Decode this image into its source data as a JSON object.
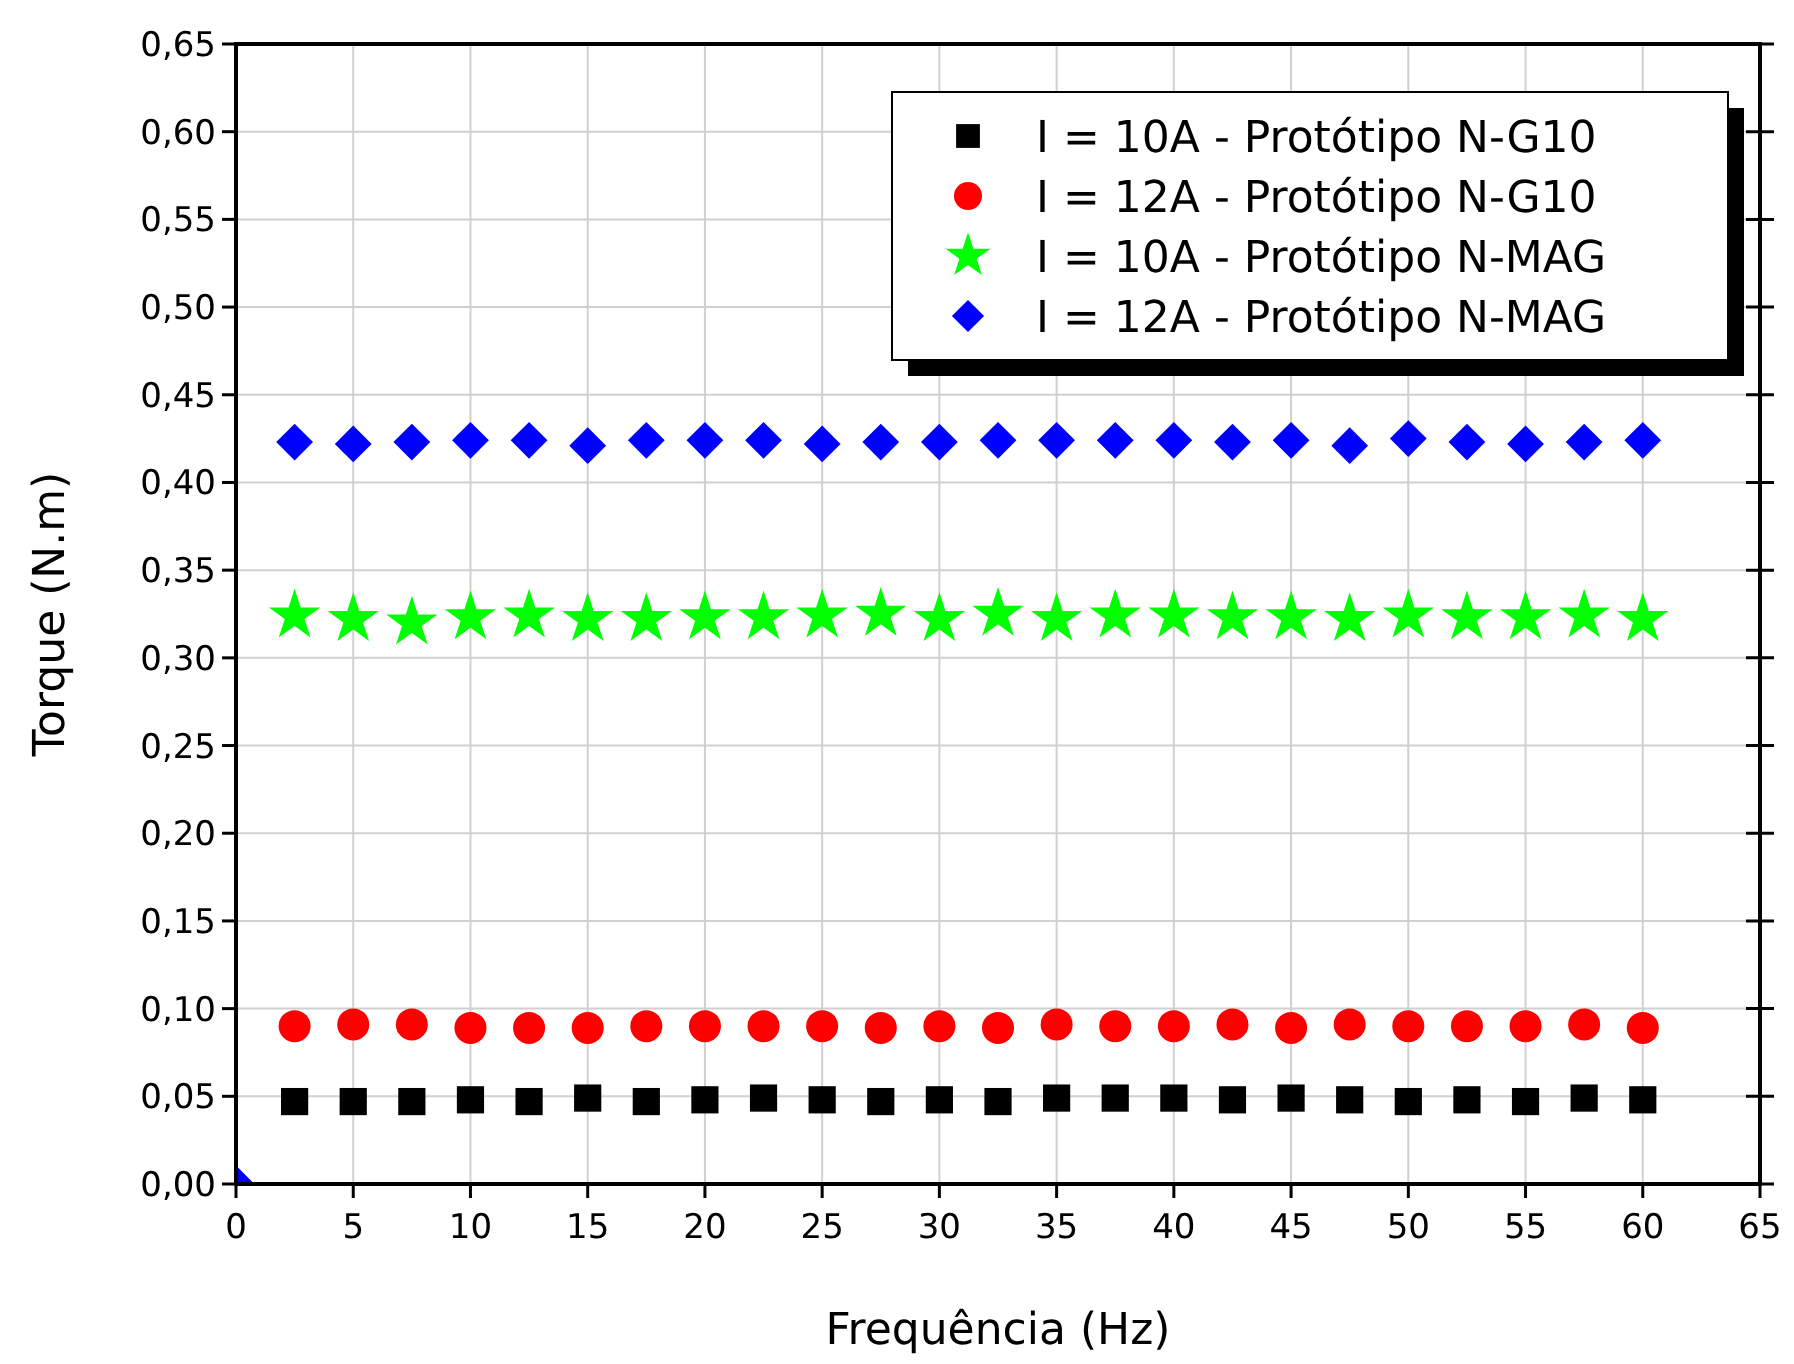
{
  "chart_data": {
    "type": "scatter",
    "xlabel": "Frequência (Hz)",
    "ylabel": "Torque (N.m)",
    "xlim": [
      0,
      65
    ],
    "ylim": [
      0,
      0.65
    ],
    "xticks": [
      0,
      5,
      10,
      15,
      20,
      25,
      30,
      35,
      40,
      45,
      50,
      55,
      60,
      65
    ],
    "yticks": [
      {
        "value": 0,
        "label": "0,00"
      },
      {
        "value": 0.05,
        "label": "0,05"
      },
      {
        "value": 0.1,
        "label": "0,10"
      },
      {
        "value": 0.15,
        "label": "0,15"
      },
      {
        "value": 0.2,
        "label": "0,20"
      },
      {
        "value": 0.25,
        "label": "0,25"
      },
      {
        "value": 0.3,
        "label": "0,30"
      },
      {
        "value": 0.35,
        "label": "0,35"
      },
      {
        "value": 0.4,
        "label": "0,40"
      },
      {
        "value": 0.45,
        "label": "0,45"
      },
      {
        "value": 0.5,
        "label": "0,50"
      },
      {
        "value": 0.55,
        "label": "0,55"
      },
      {
        "value": 0.6,
        "label": "0,60"
      },
      {
        "value": 0.65,
        "label": "0,65"
      }
    ],
    "grid": true,
    "legend": "top right",
    "series": [
      {
        "name": "I = 10A - Protótipo N-G10",
        "color": "#000000",
        "marker": "square",
        "x": [
          2.5,
          5,
          7.5,
          10,
          12.5,
          15,
          17.5,
          20,
          22.5,
          25,
          27.5,
          30,
          32.5,
          35,
          37.5,
          40,
          42.5,
          45,
          47.5,
          50,
          52.5,
          55,
          57.5,
          60
        ],
        "values": [
          0.047,
          0.047,
          0.047,
          0.048,
          0.047,
          0.049,
          0.047,
          0.048,
          0.049,
          0.048,
          0.047,
          0.048,
          0.047,
          0.049,
          0.049,
          0.049,
          0.048,
          0.049,
          0.048,
          0.047,
          0.048,
          0.047,
          0.049,
          0.048
        ]
      },
      {
        "name": "I = 12A - Protótipo N-G10",
        "color": "#ff0000",
        "marker": "circle",
        "x": [
          2.5,
          5,
          7.5,
          10,
          12.5,
          15,
          17.5,
          20,
          22.5,
          25,
          27.5,
          30,
          32.5,
          35,
          37.5,
          40,
          42.5,
          45,
          47.5,
          50,
          52.5,
          55,
          57.5,
          60
        ],
        "values": [
          0.09,
          0.091,
          0.091,
          0.089,
          0.089,
          0.089,
          0.09,
          0.09,
          0.09,
          0.09,
          0.089,
          0.09,
          0.089,
          0.091,
          0.09,
          0.09,
          0.091,
          0.089,
          0.091,
          0.09,
          0.09,
          0.09,
          0.091,
          0.089
        ]
      },
      {
        "name": "I = 10A - Protótipo N-MAG",
        "color": "#00ff00",
        "marker": "star",
        "x": [
          2.5,
          5,
          7.5,
          10,
          12.5,
          15,
          17.5,
          20,
          22.5,
          25,
          27.5,
          30,
          32.5,
          35,
          37.5,
          40,
          42.5,
          45,
          47.5,
          50,
          52.5,
          55,
          57.5,
          60
        ],
        "values": [
          0.324,
          0.322,
          0.32,
          0.323,
          0.324,
          0.322,
          0.322,
          0.323,
          0.323,
          0.324,
          0.325,
          0.322,
          0.325,
          0.322,
          0.324,
          0.324,
          0.323,
          0.323,
          0.322,
          0.324,
          0.323,
          0.323,
          0.324,
          0.322
        ]
      },
      {
        "name": "I = 12A - Protótipo N-MAG",
        "color": "#0000ff",
        "marker": "diamond",
        "x": [
          0,
          2.5,
          5,
          7.5,
          10,
          12.5,
          15,
          17.5,
          20,
          22.5,
          25,
          27.5,
          30,
          32.5,
          35,
          37.5,
          40,
          42.5,
          45,
          47.5,
          50,
          52.5,
          55,
          57.5,
          60
        ],
        "values": [
          0,
          0.423,
          0.422,
          0.423,
          0.424,
          0.424,
          0.421,
          0.424,
          0.424,
          0.424,
          0.422,
          0.423,
          0.423,
          0.424,
          0.424,
          0.424,
          0.424,
          0.423,
          0.424,
          0.421,
          0.425,
          0.423,
          0.422,
          0.423,
          0.424
        ]
      }
    ]
  }
}
